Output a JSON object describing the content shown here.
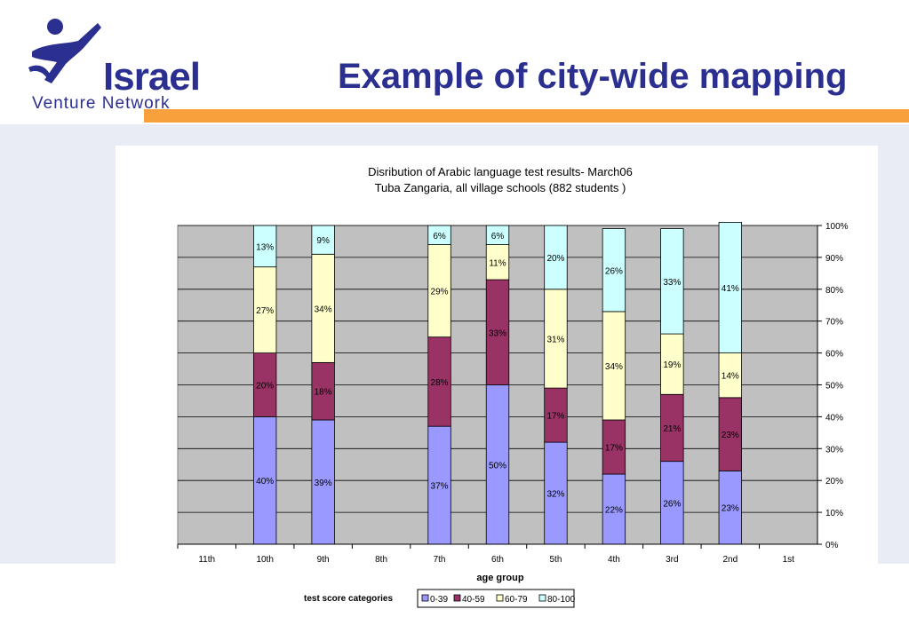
{
  "slide": {
    "title": "Example of city-wide mapping",
    "logo": {
      "brand": "Israel",
      "subtitle": "Venture Network",
      "color": "#2b2f8f"
    },
    "accent_color": "#f7a03c"
  },
  "chart_data": {
    "type": "bar",
    "stacked": "percent",
    "title": "Disribution of Arabic language test results- March06",
    "subtitle": "Tuba Zangaria, all village schools (882 students )",
    "xlabel": "age group",
    "ylabel": "",
    "ylim": [
      0,
      100
    ],
    "y_ticks": [
      "0%",
      "10%",
      "20%",
      "30%",
      "40%",
      "50%",
      "60%",
      "70%",
      "80%",
      "90%",
      "100%"
    ],
    "y_axis_side": "right",
    "grid": true,
    "legend_title": "test score categories",
    "legend_position": "bottom",
    "plot_background": "#c0c0c0",
    "categories": [
      "11th",
      "10th",
      "9th",
      "8th",
      "7th",
      "6th",
      "5th",
      "4th",
      "3rd",
      "2nd",
      "1st"
    ],
    "series": [
      {
        "name": "0-39",
        "color": "#9999ff",
        "values": [
          null,
          40,
          39,
          null,
          37,
          50,
          32,
          22,
          26,
          23,
          null
        ]
      },
      {
        "name": "40-59",
        "color": "#993366",
        "values": [
          null,
          20,
          18,
          null,
          28,
          33,
          17,
          17,
          21,
          23,
          null
        ]
      },
      {
        "name": "60-79",
        "color": "#ffffcc",
        "values": [
          null,
          27,
          34,
          null,
          29,
          11,
          31,
          34,
          19,
          14,
          null
        ]
      },
      {
        "name": "80-100",
        "color": "#ccffff",
        "values": [
          null,
          13,
          9,
          null,
          6,
          6,
          20,
          26,
          33,
          41,
          null
        ]
      }
    ],
    "data_labels": [
      [
        null,
        "40%",
        "39%",
        null,
        "37%",
        "50%",
        "32%",
        "22%",
        "26%",
        "23%",
        null
      ],
      [
        null,
        "20%",
        "18%",
        null,
        "28%",
        "33%",
        "17%",
        "17%",
        "21%",
        "23%",
        null
      ],
      [
        null,
        "27%",
        "34%",
        null,
        "29%",
        "11%",
        "31%",
        "34%",
        "19%",
        "14%",
        null
      ],
      [
        null,
        "13%",
        "9%",
        null,
        "6%",
        "6%",
        "20%",
        "26%",
        "33%",
        "41%",
        null
      ]
    ]
  }
}
